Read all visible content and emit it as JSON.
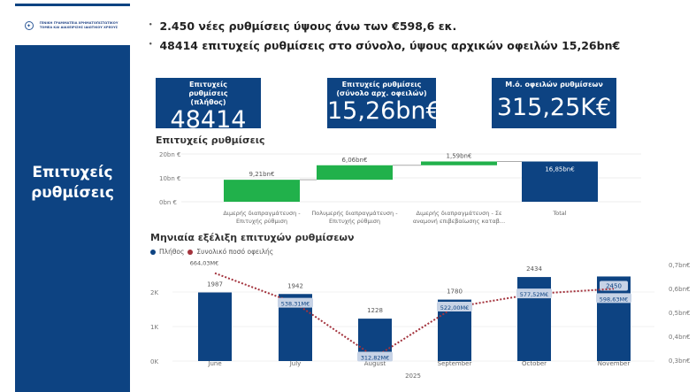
{
  "sidebar": {
    "logo_text": "ΓΕΝΙΚΗ ΓΡΑΜΜΑΤΕΙΑ ΧΡΗΜΑΤΟΠΙΣΤΩΤΙΚΟΥ ΤΟΜΕΑ ΚΑΙ ΔΙΑΧΕΙΡΙΣΗΣ ΙΔΙΩΤΙΚΟΥ ΧΡΕΟΥΣ",
    "title": "Επιτυχείς ρυθμίσεις"
  },
  "bullets": [
    "2.450 νέες ρυθμίσεις ύψους άνω των €598,6 εκ.",
    "48414 επιτυχείς ρυθμίσεις στο σύνολο, ύψους αρχικών οφειλών  15,26bn€"
  ],
  "kpis": [
    {
      "title": "Επιτυχείς ρυθμίσεις (πλήθος)",
      "value": "48414"
    },
    {
      "title": "Επιτυχείς ρυθμίσεις (σύνολο αρχ. οφειλών)",
      "value": "15,26bn€"
    },
    {
      "title": "Μ.ό. οφειλών ρυθμίσεων",
      "value": "315,25K€"
    }
  ],
  "colors": {
    "primary": "#0d4382",
    "increase": "#21b14b",
    "line": "#a3333d"
  },
  "chart_data": [
    {
      "type": "waterfall",
      "title": "Επιτυχείς ρυθμίσεις",
      "categories": [
        "Διμερής διαπραγμάτευση - Επιτυχής ρύθμιση",
        "Πολυμερής διαπραγμάτευση - Επιτυχής ρύθμιση",
        "Διμερής διαπραγμάτευση - Σε αναμονή επιβεβαίωσης καταβ...",
        "Total"
      ],
      "values": [
        9.21,
        6.06,
        1.59,
        16.85
      ],
      "labels": [
        "9,21bn€",
        "6,06bn€",
        "1,59bn€",
        "16,85bn€"
      ],
      "yticks": [
        "0bn €",
        "10bn €",
        "20bn €"
      ],
      "ylim": [
        0,
        20
      ]
    },
    {
      "type": "bar+line",
      "title": "Μηνιαία εξέλιξη επιτυχών ρυθμίσεων",
      "xlabel": "2025",
      "categories": [
        "June",
        "July",
        "August",
        "September",
        "October",
        "November"
      ],
      "series": [
        {
          "name": "Πλήθος",
          "type": "bar",
          "axis": "left",
          "values": [
            1987,
            1942,
            1228,
            1780,
            2434,
            2450
          ],
          "labels": [
            "1987",
            "1942",
            "1228",
            "1780",
            "2434",
            "2450"
          ]
        },
        {
          "name": "Συνολικό ποσό οφειλής",
          "type": "line",
          "axis": "right",
          "values": [
            0.66403,
            0.53831,
            0.31282,
            0.522,
            0.57752,
            0.59863
          ],
          "labels": [
            "664,03M€",
            "538,31M€",
            "312,82M€",
            "522,00M€",
            "577,52M€",
            "598,63M€"
          ]
        }
      ],
      "yticks_left": [
        "0K",
        "1K",
        "2K"
      ],
      "ylim_left": [
        0,
        2000
      ],
      "yticks_right": [
        "0,3bn€",
        "0,4bn€",
        "0,5bn€",
        "0,6bn€",
        "0,7bn€"
      ],
      "ylim_right": [
        0.3,
        0.7
      ],
      "legend": "top-left"
    }
  ]
}
